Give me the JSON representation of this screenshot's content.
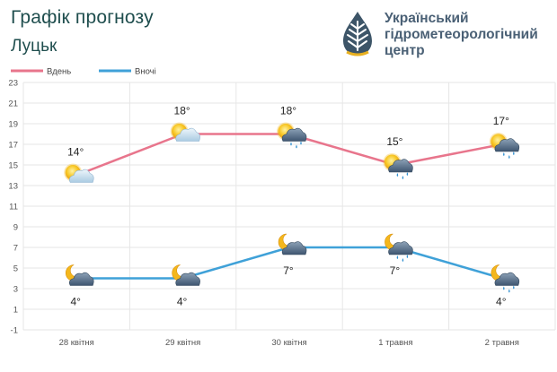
{
  "header": {
    "title": "Графік прогнозу",
    "subtitle": "Луцьк"
  },
  "organization": {
    "name_lines": [
      "Український",
      "гідрометеорологічний",
      "центр"
    ]
  },
  "chart_data": {
    "type": "line",
    "title": "Графік прогнозу",
    "subtitle": "Луцьк",
    "xlabel": "",
    "ylabel": "",
    "categories": [
      "28 квітня",
      "29 квітня",
      "30 квітня",
      "1 травня",
      "2 травня"
    ],
    "y_ticks": [
      -1,
      1,
      3,
      5,
      7,
      9,
      11,
      13,
      15,
      17,
      19,
      21,
      23
    ],
    "ylim": [
      -1,
      23
    ],
    "grid": true,
    "legend_position": "top-left",
    "series": [
      {
        "name": "Вдень",
        "color": "#e8758c",
        "values": [
          14,
          18,
          18,
          15,
          17
        ],
        "labels": [
          "14°",
          "18°",
          "18°",
          "15°",
          "17°"
        ],
        "icons": [
          "sun-cloud-icon",
          "sun-cloud-icon",
          "sun-cloud-rain-icon",
          "sun-cloud-rain-icon",
          "sun-cloud-rain-icon"
        ]
      },
      {
        "name": "Вночі",
        "color": "#3fa1d8",
        "values": [
          4,
          4,
          7,
          7,
          4
        ],
        "labels": [
          "4°",
          "4°",
          "7°",
          "7°",
          "4°"
        ],
        "icons": [
          "moon-cloud-icon",
          "moon-cloud-icon",
          "moon-cloud-icon",
          "moon-cloud-rain-icon",
          "moon-cloud-rain-icon"
        ]
      }
    ]
  }
}
